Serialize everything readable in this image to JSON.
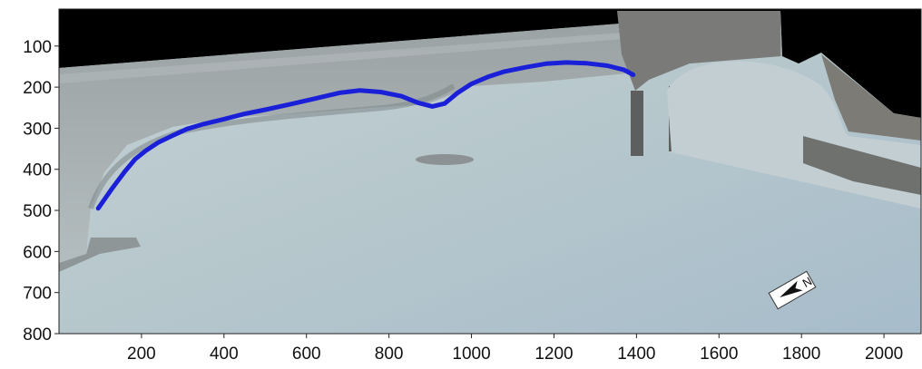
{
  "chart_data": {
    "type": "line",
    "title": "",
    "xlabel": "",
    "ylabel": "",
    "xlim": [
      0,
      2090
    ],
    "ylim": [
      800,
      10
    ],
    "y_inverted": true,
    "grid": false,
    "background": "aerial orthophoto mosaic of a beach and harbour",
    "x_ticks": [
      200,
      400,
      600,
      800,
      1000,
      1200,
      1400,
      1600,
      1800,
      2000
    ],
    "y_ticks": [
      100,
      200,
      300,
      400,
      500,
      600,
      700,
      800
    ],
    "series": [
      {
        "color": "#1a1fd8",
        "x": [
          95,
          130,
          160,
          185,
          210,
          240,
          275,
          310,
          350,
          400,
          450,
          500,
          560,
          620,
          680,
          730,
          780,
          830,
          870,
          905,
          935,
          965,
          1000,
          1040,
          1080,
          1130,
          1180,
          1230,
          1280,
          1330,
          1370,
          1392
        ],
        "y": [
          495,
          445,
          405,
          375,
          355,
          335,
          318,
          302,
          290,
          278,
          265,
          255,
          242,
          228,
          214,
          208,
          212,
          222,
          238,
          247,
          240,
          215,
          192,
          175,
          162,
          152,
          143,
          140,
          142,
          148,
          158,
          170
        ]
      }
    ],
    "annotations": [
      {
        "text": "N",
        "kind": "north-arrow"
      }
    ]
  }
}
